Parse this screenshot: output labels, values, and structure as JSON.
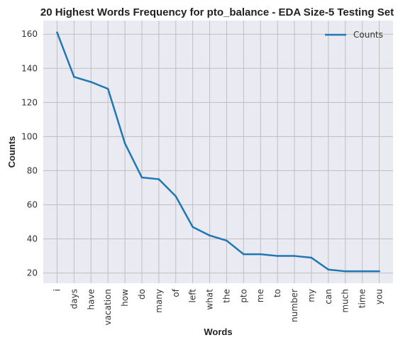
{
  "chart_data": {
    "type": "line",
    "title": "20 Highest Words Frequency for pto_balance - EDA Size-5 Testing Set",
    "xlabel": "Words",
    "ylabel": "Counts",
    "categories": [
      "i",
      "days",
      "have",
      "vacation",
      "how",
      "do",
      "many",
      "of",
      "left",
      "what",
      "the",
      "pto",
      "me",
      "to",
      "number",
      "my",
      "can",
      "much",
      "time",
      "you"
    ],
    "series": [
      {
        "name": "Counts",
        "values": [
          161,
          135,
          132,
          128,
          96,
          76,
          75,
          65,
          47,
          42,
          39,
          31,
          31,
          30,
          30,
          29,
          22,
          21,
          21,
          21
        ],
        "color": "#1f77b4"
      }
    ],
    "ylim": [
      14,
      168
    ],
    "yticks": [
      20,
      40,
      60,
      80,
      100,
      120,
      140,
      160
    ],
    "grid": true,
    "legend_position": "top-right"
  },
  "colors": {
    "plot_background": "#eaeaf2",
    "grid": "#bfbfbf",
    "line": "#1f77b4"
  }
}
